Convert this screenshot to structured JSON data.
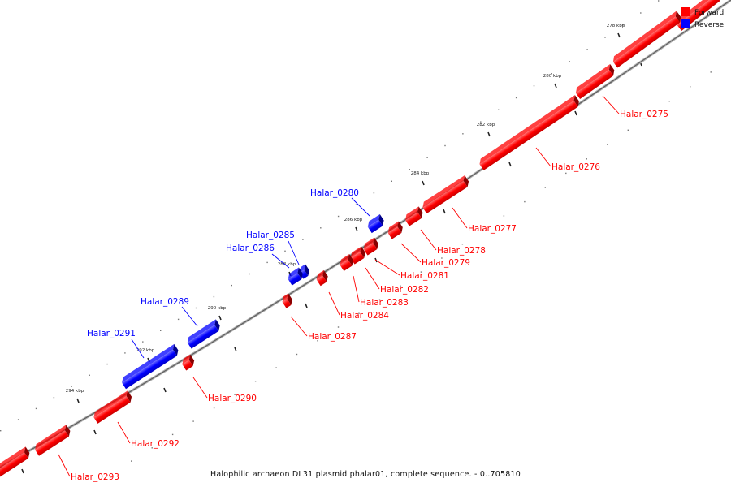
{
  "caption": "Halophilic archaeon DL31 plasmid phalar01, complete sequence. - 0..705810",
  "legend": [
    {
      "label": "Forward",
      "color": "#ff0000"
    },
    {
      "label": "Reverse",
      "color": "#0000ff"
    }
  ],
  "colors": {
    "forward": "#ff0000",
    "reverse": "#0000ff",
    "backbone": "#a0a0a0"
  },
  "ticks": [
    "278 kbp",
    "280 kbp",
    "282 kbp",
    "284 kbp",
    "286 kbp",
    "288 kbp",
    "290 kbp",
    "292 kbp",
    "294 kbp"
  ],
  "genes": [
    {
      "name": "Halar_0275",
      "strand": "forward"
    },
    {
      "name": "Halar_0276",
      "strand": "forward"
    },
    {
      "name": "Halar_0277",
      "strand": "forward"
    },
    {
      "name": "Halar_0278",
      "strand": "forward"
    },
    {
      "name": "Halar_0279",
      "strand": "forward"
    },
    {
      "name": "Halar_0280",
      "strand": "reverse"
    },
    {
      "name": "Halar_0281",
      "strand": "forward"
    },
    {
      "name": "Halar_0282",
      "strand": "forward"
    },
    {
      "name": "Halar_0283",
      "strand": "forward"
    },
    {
      "name": "Halar_0284",
      "strand": "forward"
    },
    {
      "name": "Halar_0285",
      "strand": "reverse"
    },
    {
      "name": "Halar_0286",
      "strand": "reverse"
    },
    {
      "name": "Halar_0287",
      "strand": "forward"
    },
    {
      "name": "Halar_0289",
      "strand": "reverse"
    },
    {
      "name": "Halar_0290",
      "strand": "forward"
    },
    {
      "name": "Halar_0291",
      "strand": "reverse"
    },
    {
      "name": "Halar_0292",
      "strand": "forward"
    },
    {
      "name": "Halar_0293",
      "strand": "forward"
    }
  ]
}
